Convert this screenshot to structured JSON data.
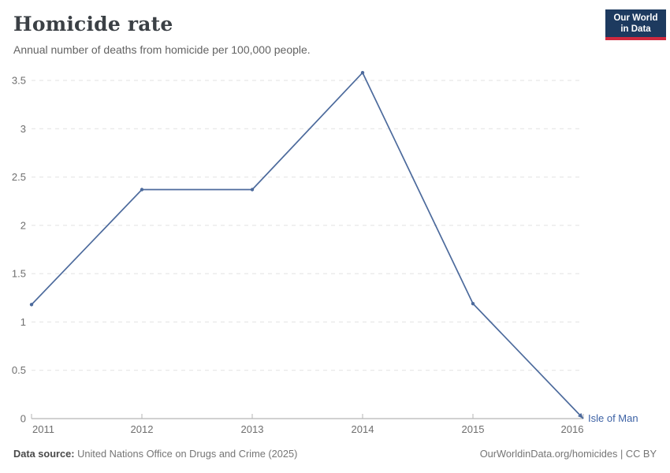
{
  "header": {
    "title": "Homicide rate",
    "subtitle": "Annual number of deaths from homicide per 100,000 people."
  },
  "logo": {
    "line1": "Our World",
    "line2": "in Data"
  },
  "chart_data": {
    "type": "line",
    "title": "Homicide rate",
    "subtitle": "Annual number of deaths from homicide per 100,000 people.",
    "x": [
      2011,
      2012,
      2013,
      2014,
      2015,
      2016
    ],
    "series": [
      {
        "name": "Isle of Man",
        "values": [
          1.18,
          2.37,
          2.37,
          3.58,
          1.19,
          0
        ]
      }
    ],
    "xlabel": "",
    "ylabel": "",
    "ylim": [
      0,
      3.5
    ],
    "yticks": [
      0,
      0.5,
      1,
      1.5,
      2,
      2.5,
      3,
      3.5
    ],
    "grid": "horizontal-dashed",
    "legend_position": "line-end-label",
    "entity_label": "Isle of Man"
  },
  "footer": {
    "source_label": "Data source:",
    "source_text": "United Nations Office on Drugs and Crime (2025)",
    "credit": "OurWorldinData.org/homicides | CC BY"
  },
  "colors": {
    "line": "#4c6a9c",
    "entity_label": "#3d62a5",
    "grid": "#e2e2e2",
    "axis": "#a3a3a3",
    "tick": "#b5b5b5",
    "tick_text": "#6e6e6e",
    "logo_bg": "#1d3a5f",
    "logo_accent": "#d0293e"
  }
}
